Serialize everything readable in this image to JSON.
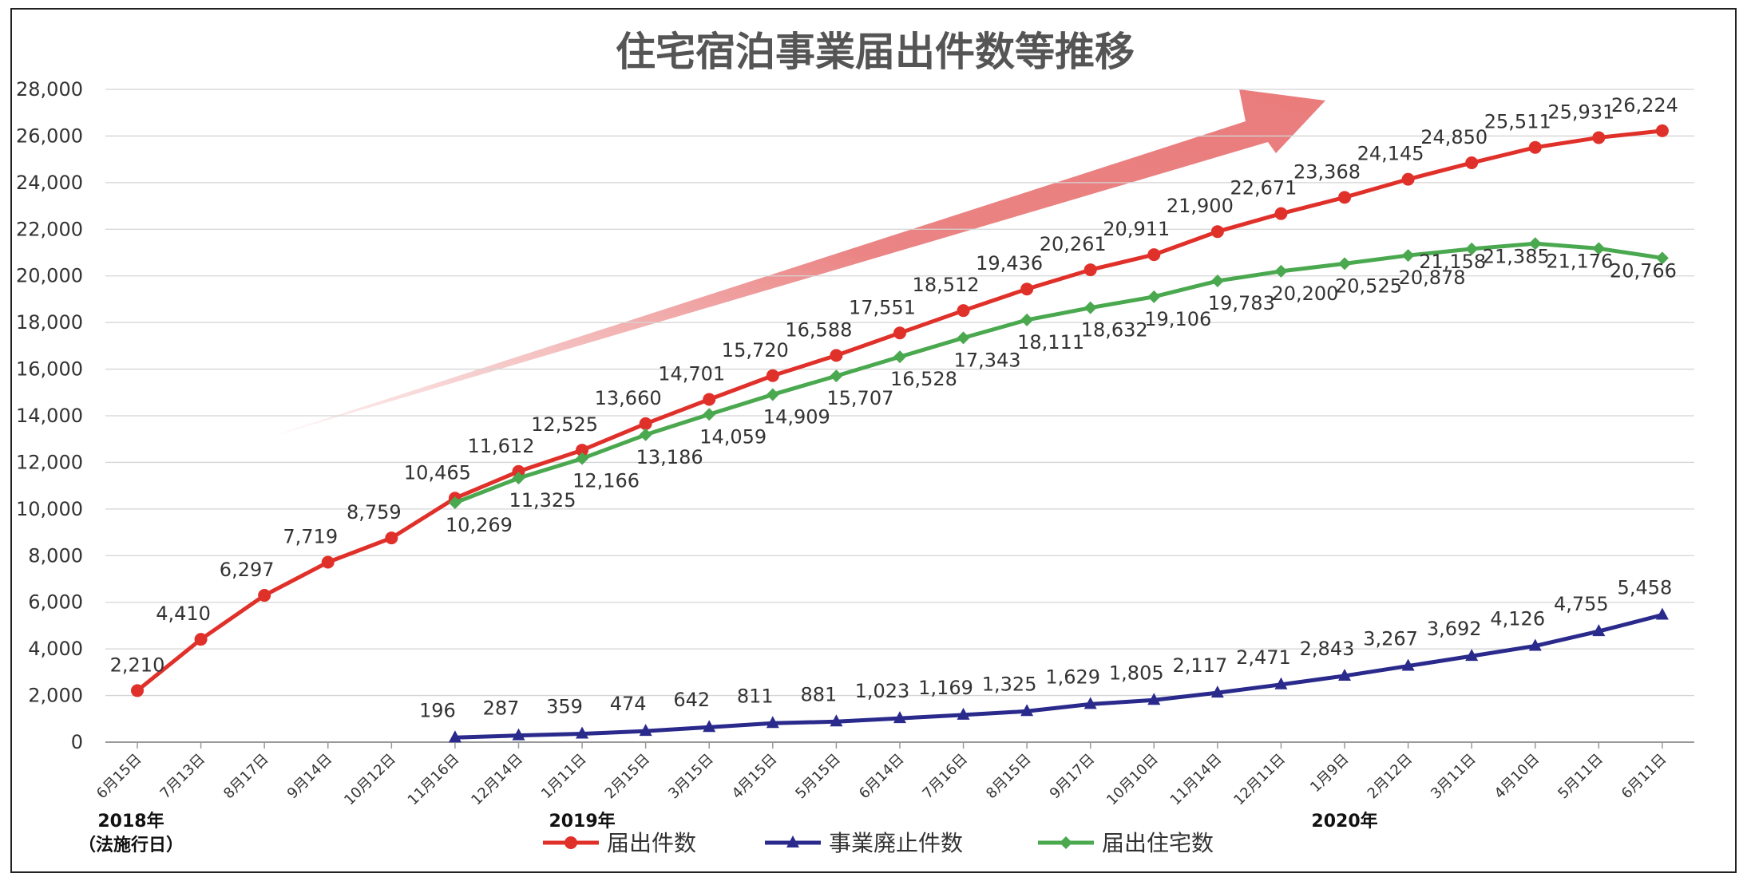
{
  "chart_data": {
    "type": "line",
    "title": "住宅宿泊事業届出件数等推移",
    "categories": [
      "6月15日",
      "7月13日",
      "8月17日",
      "9月14日",
      "10月12日",
      "11月16日",
      "12月14日",
      "1月11日",
      "2月15日",
      "3月15日",
      "4月15日",
      "5月15日",
      "6月14日",
      "7月16日",
      "8月15日",
      "9月17日",
      "10月10日",
      "11月14日",
      "12月11日",
      "1月9日",
      "2月12日",
      "3月11日",
      "4月10日",
      "5月11日",
      "6月11日"
    ],
    "year_labels": [
      {
        "text": "2018年",
        "sub": "（法施行日）",
        "index": 0
      },
      {
        "text": "2019年",
        "sub": "",
        "index": 7
      },
      {
        "text": "2020年",
        "sub": "",
        "index": 19
      }
    ],
    "yticks": [
      "0",
      "2,000",
      "4,000",
      "6,000",
      "8,000",
      "10,000",
      "12,000",
      "14,000",
      "16,000",
      "18,000",
      "20,000",
      "22,000",
      "24,000",
      "26,000",
      "28,000"
    ],
    "ylim": [
      0,
      28000
    ],
    "grid": true,
    "legend_position": "bottom",
    "series": [
      {
        "name": "届出件数",
        "color": "#e0302a",
        "marker": "circle",
        "values": [
          2210,
          4410,
          6297,
          7719,
          8759,
          10465,
          11612,
          12525,
          13660,
          14701,
          15720,
          16588,
          17551,
          18512,
          19436,
          20261,
          20911,
          21900,
          22671,
          23368,
          24145,
          24850,
          25511,
          25931,
          26224
        ],
        "labels": [
          "2,210",
          "4,410",
          "6,297",
          "7,719",
          "8,759",
          "10,465",
          "11,612",
          "12,525",
          "13,660",
          "14,701",
          "15,720",
          "16,588",
          "17,551",
          "18,512",
          "19,436",
          "20,261",
          "20,911",
          "21,900",
          "22,671",
          "23,368",
          "24,145",
          "24,850",
          "25,511",
          "25,931",
          "26,224"
        ]
      },
      {
        "name": "事業廃止件数",
        "color": "#2a2a8c",
        "marker": "triangle",
        "values": [
          null,
          null,
          null,
          null,
          null,
          196,
          287,
          359,
          474,
          642,
          811,
          881,
          1023,
          1169,
          1325,
          1629,
          1805,
          2117,
          2471,
          2843,
          3267,
          3692,
          4126,
          4755,
          5458
        ],
        "labels": [
          null,
          null,
          null,
          null,
          null,
          "196",
          "287",
          "359",
          "474",
          "642",
          "811",
          "881",
          "1,023",
          "1,169",
          "1,325",
          "1,629",
          "1,805",
          "2,117",
          "2,471",
          "2,843",
          "3,267",
          "3,692",
          "4,126",
          "4,755",
          "5,458"
        ]
      },
      {
        "name": "届出住宅数",
        "color": "#4aa84f",
        "marker": "diamond",
        "values": [
          null,
          null,
          null,
          null,
          null,
          10269,
          11325,
          12166,
          13186,
          14059,
          14909,
          15707,
          16528,
          17343,
          18111,
          18632,
          19106,
          19783,
          20200,
          20525,
          20878,
          21158,
          21385,
          21176,
          20766
        ],
        "labels": [
          null,
          null,
          null,
          null,
          null,
          "10,269",
          "11,325",
          "12,166",
          "13,186",
          "14,059",
          "14,909",
          "15,707",
          "16,528",
          "17,343",
          "18,111",
          "18,632",
          "19,106",
          "19,783",
          "20,200",
          "20,525",
          "20,878",
          "21,158",
          "21,385",
          "21,176",
          "20,766"
        ]
      }
    ]
  }
}
